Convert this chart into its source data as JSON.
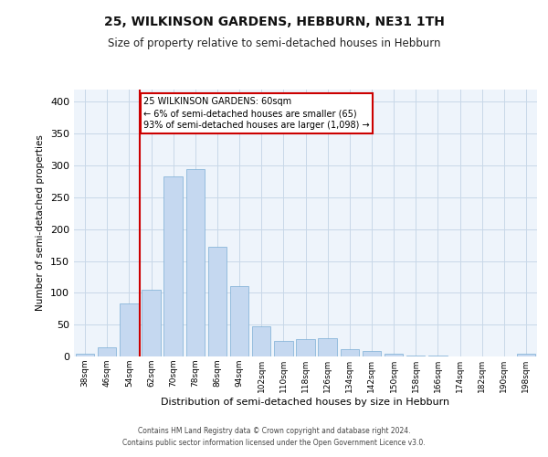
{
  "title": "25, WILKINSON GARDENS, HEBBURN, NE31 1TH",
  "subtitle": "Size of property relative to semi-detached houses in Hebburn",
  "xlabel": "Distribution of semi-detached houses by size in Hebburn",
  "ylabel": "Number of semi-detached properties",
  "footer_line1": "Contains HM Land Registry data © Crown copyright and database right 2024.",
  "footer_line2": "Contains public sector information licensed under the Open Government Licence v3.0.",
  "bins": [
    "38sqm",
    "46sqm",
    "54sqm",
    "62sqm",
    "70sqm",
    "78sqm",
    "86sqm",
    "94sqm",
    "102sqm",
    "110sqm",
    "118sqm",
    "126sqm",
    "134sqm",
    "142sqm",
    "150sqm",
    "158sqm",
    "166sqm",
    "174sqm",
    "182sqm",
    "190sqm",
    "198sqm"
  ],
  "values": [
    5,
    15,
    83,
    105,
    283,
    294,
    172,
    111,
    48,
    25,
    27,
    29,
    11,
    9,
    4,
    2,
    1,
    0,
    0,
    0,
    4
  ],
  "bar_color": "#c5d8f0",
  "bar_edge_color": "#7badd4",
  "grid_color": "#c8d8e8",
  "bg_color": "#eef4fb",
  "property_line_bin_idx": 3,
  "annotation_title": "25 WILKINSON GARDENS: 60sqm",
  "annotation_line2": "← 6% of semi-detached houses are smaller (65)",
  "annotation_line3": "93% of semi-detached houses are larger (1,098) →",
  "annotation_box_color": "#cc0000",
  "ylim": [
    0,
    420
  ],
  "yticks": [
    0,
    50,
    100,
    150,
    200,
    250,
    300,
    350,
    400
  ]
}
